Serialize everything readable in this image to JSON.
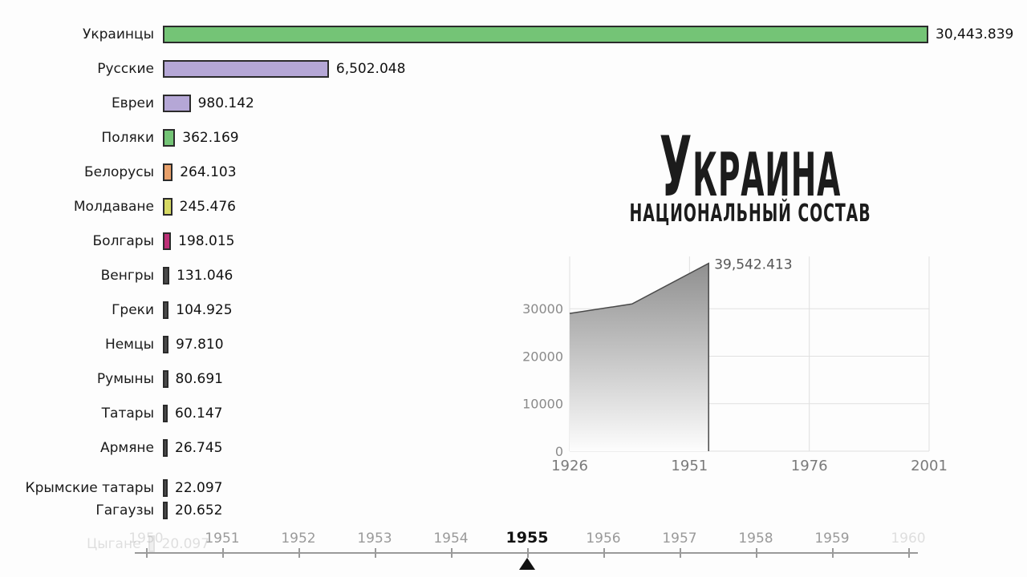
{
  "title": "Украина",
  "subtitle": "национальный состав",
  "chart_data": [
    {
      "type": "bar",
      "orientation": "horizontal",
      "categories": [
        "Украинцы",
        "Русские",
        "Евреи",
        "Поляки",
        "Белорусы",
        "Молдаване",
        "Болгары",
        "Венгры",
        "Греки",
        "Немцы",
        "Румыны",
        "Татары",
        "Армяне",
        "Крымские татары",
        "Гагаузы"
      ],
      "values": [
        30443.839,
        6502.048,
        980.142,
        362.169,
        264.103,
        245.476,
        198.015,
        131.046,
        104.925,
        97.81,
        80.691,
        60.147,
        26.745,
        22.097,
        20.652
      ],
      "value_labels": [
        "30,443.839",
        "6,502.048",
        "980.142",
        "362.169",
        "264.103",
        "245.476",
        "198.015",
        "131.046",
        "104.925",
        "97.810",
        "80.691",
        "60.147",
        "26.745",
        "22.097",
        "20.652"
      ],
      "bar_colors": [
        "#74c476",
        "#b5a7d6",
        "#b5a7d6",
        "#74c476",
        "#e8a06a",
        "#d6d964",
        "#bd3077",
        "#4a4a4a",
        "#4a4a4a",
        "#4a4a4a",
        "#4a4a4a",
        "#4a4a4a",
        "#4a4a4a",
        "#4a4a4a",
        "#4a4a4a"
      ],
      "exiting_row": {
        "label": "Цыгане",
        "value_label": "20.097"
      }
    },
    {
      "type": "area",
      "x": [
        1926,
        1939,
        1955
      ],
      "y": [
        29000,
        31000,
        39542.413
      ],
      "peak_label": "39,542.413",
      "xticks": [
        "1926",
        "1951",
        "1976",
        "2001"
      ],
      "yticks": [
        "0",
        "10000",
        "20000",
        "30000"
      ],
      "xlim": [
        1926,
        2001
      ],
      "ylim": [
        0,
        41000
      ],
      "line_color": "#4a4a4a",
      "fill": "gray-gradient"
    }
  ],
  "timeline": {
    "years": [
      "1950",
      "1951",
      "1952",
      "1953",
      "1954",
      "1955",
      "1956",
      "1957",
      "1958",
      "1959",
      "1960"
    ],
    "current_year": "1955"
  },
  "colors": {
    "bar_border": "#2b2b2b",
    "grid": "#e0e0e0",
    "axis_label": "#8a8a8a",
    "peak_label": "#555555",
    "timeline_inactive": "#9a9a9a",
    "timeline_active": "#111111"
  }
}
